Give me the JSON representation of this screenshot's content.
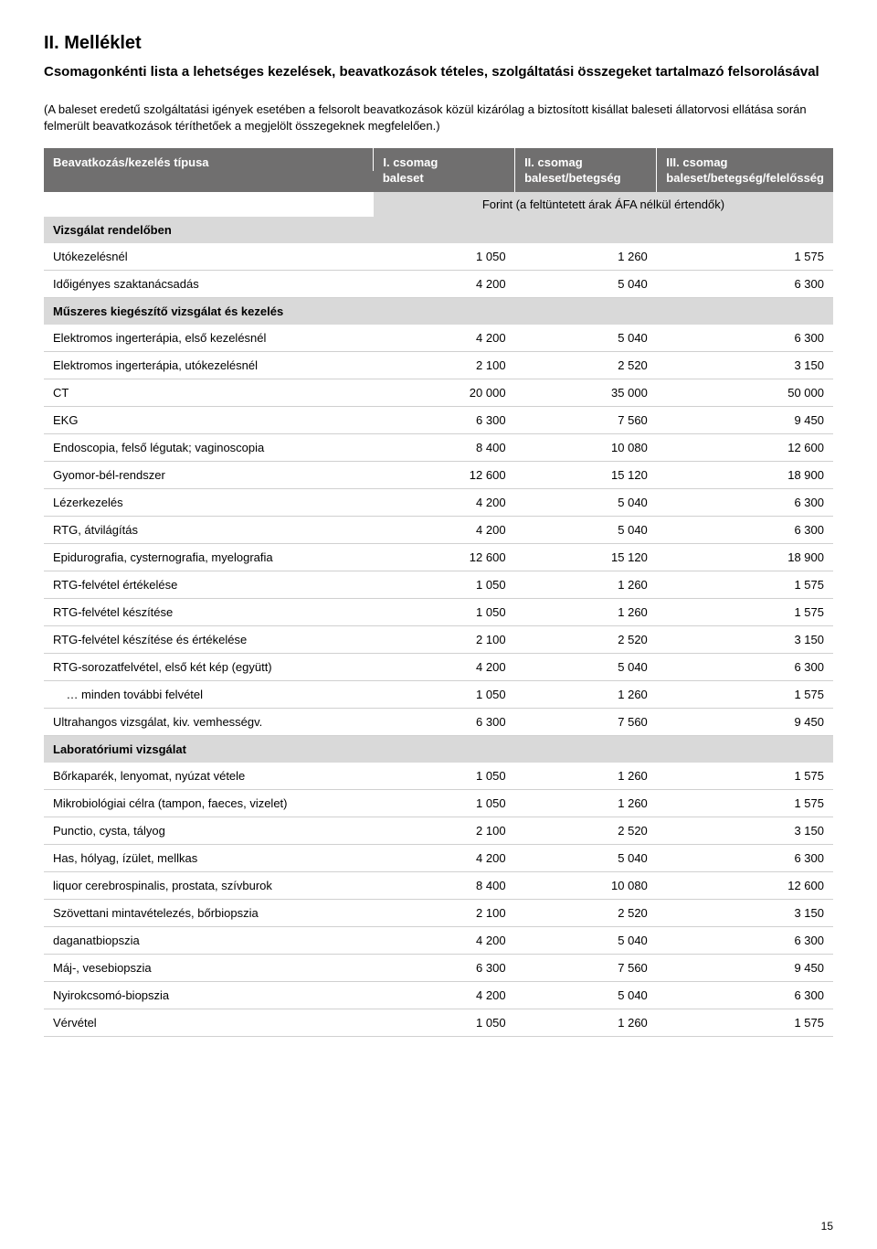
{
  "title": "II. Melléklet",
  "subtitle": "Csomagonkénti lista a lehetséges kezelések, beavatkozások tételes, szolgáltatási összegeket tartalmazó felsorolásával",
  "intro": "(A baleset eredetű szolgáltatási igények esetében a felsorolt beavatkozások közül kizárólag a biztosított kisállat baleseti állatorvosi ellátása során felmerült beavatkozások téríthetőek a megjelölt összegeknek megfelelően.)",
  "header": {
    "col1": "Beavatkozás/kezelés típusa",
    "col2_top": "I. csomag",
    "col2_bot": "baleset",
    "col3_top": "II. csomag",
    "col3_bot": "baleset/betegség",
    "col4_top": "III. csomag",
    "col4_bot": "baleset/betegség/felelősség",
    "sub": "Forint (a feltüntetett árak ÁFA nélkül értendők)"
  },
  "sections": [
    {
      "label": "Vizsgálat rendelőben",
      "rows": [
        {
          "label": "Utókezelésnél",
          "v1": "1 050",
          "v2": "1 260",
          "v3": "1 575"
        },
        {
          "label": "Időigényes szaktanácsadás",
          "v1": "4 200",
          "v2": "5 040",
          "v3": "6 300"
        }
      ]
    },
    {
      "label": "Műszeres kiegészítő vizsgálat és kezelés",
      "rows": [
        {
          "label": "Elektromos ingerterápia, első kezelésnél",
          "v1": "4 200",
          "v2": "5 040",
          "v3": "6 300"
        },
        {
          "label": "Elektromos ingerterápia, utókezelésnél",
          "v1": "2 100",
          "v2": "2 520",
          "v3": "3 150"
        },
        {
          "label": "CT",
          "v1": "20 000",
          "v2": "35 000",
          "v3": "50 000"
        },
        {
          "label": "EKG",
          "v1": "6 300",
          "v2": "7 560",
          "v3": "9 450"
        },
        {
          "label": "Endoscopia, felső légutak; vaginoscopia",
          "v1": "8 400",
          "v2": "10 080",
          "v3": "12 600"
        },
        {
          "label": "Gyomor-bél-rendszer",
          "v1": "12 600",
          "v2": "15 120",
          "v3": "18 900"
        },
        {
          "label": "Lézerkezelés",
          "v1": "4 200",
          "v2": "5 040",
          "v3": "6 300"
        },
        {
          "label": "RTG, átvilágítás",
          "v1": "4 200",
          "v2": "5 040",
          "v3": "6 300"
        },
        {
          "label": "Epidurografia, cysternografia, myelografia",
          "v1": "12 600",
          "v2": "15 120",
          "v3": "18 900"
        },
        {
          "label": "RTG-felvétel értékelése",
          "v1": "1 050",
          "v2": "1 260",
          "v3": "1 575"
        },
        {
          "label": "RTG-felvétel készítése",
          "v1": "1 050",
          "v2": "1 260",
          "v3": "1 575"
        },
        {
          "label": "RTG-felvétel készítése és értékelése",
          "v1": "2 100",
          "v2": "2 520",
          "v3": "3 150"
        },
        {
          "label": "RTG-sorozatfelvétel, első két kép (együtt)",
          "v1": "4 200",
          "v2": "5 040",
          "v3": "6 300"
        },
        {
          "label": "    … minden további felvétel",
          "v1": "1 050",
          "v2": "1 260",
          "v3": "1 575"
        },
        {
          "label": "Ultrahangos vizsgálat, kiv. vemhességv.",
          "v1": "6 300",
          "v2": "7 560",
          "v3": "9 450"
        }
      ]
    },
    {
      "label": "Laboratóriumi vizsgálat",
      "rows": [
        {
          "label": "Bőrkaparék, lenyomat, nyúzat vétele",
          "v1": "1 050",
          "v2": "1 260",
          "v3": "1 575"
        },
        {
          "label": "Mikrobiológiai célra (tampon, faeces, vizelet)",
          "v1": "1 050",
          "v2": "1 260",
          "v3": "1 575"
        },
        {
          "label": "Punctio, cysta, tályog",
          "v1": "2 100",
          "v2": "2 520",
          "v3": "3 150"
        },
        {
          "label": "Has, hólyag, ízület, mellkas",
          "v1": "4 200",
          "v2": "5 040",
          "v3": "6 300"
        },
        {
          "label": "liquor cerebrospinalis, prostata, szívburok",
          "v1": "8 400",
          "v2": "10 080",
          "v3": "12 600"
        },
        {
          "label": "Szövettani mintavételezés, bőrbiopszia",
          "v1": "2 100",
          "v2": "2 520",
          "v3": "3 150"
        },
        {
          "label": "daganatbiopszia",
          "v1": "4 200",
          "v2": "5 040",
          "v3": "6 300"
        },
        {
          "label": "Máj-, vesebiopszia",
          "v1": "6 300",
          "v2": "7 560",
          "v3": "9 450"
        },
        {
          "label": "Nyirokcsomó-biopszia",
          "v1": "4 200",
          "v2": "5 040",
          "v3": "6 300"
        },
        {
          "label": "Vérvétel",
          "v1": "1 050",
          "v2": "1 260",
          "v3": "1 575"
        }
      ]
    }
  ],
  "page_number": "15",
  "colors": {
    "header_bg": "#706f6f",
    "header_text": "#ffffff",
    "section_bg": "#d9d9d9",
    "border": "#d0d0d0",
    "text": "#000000",
    "page_bg": "#ffffff"
  }
}
